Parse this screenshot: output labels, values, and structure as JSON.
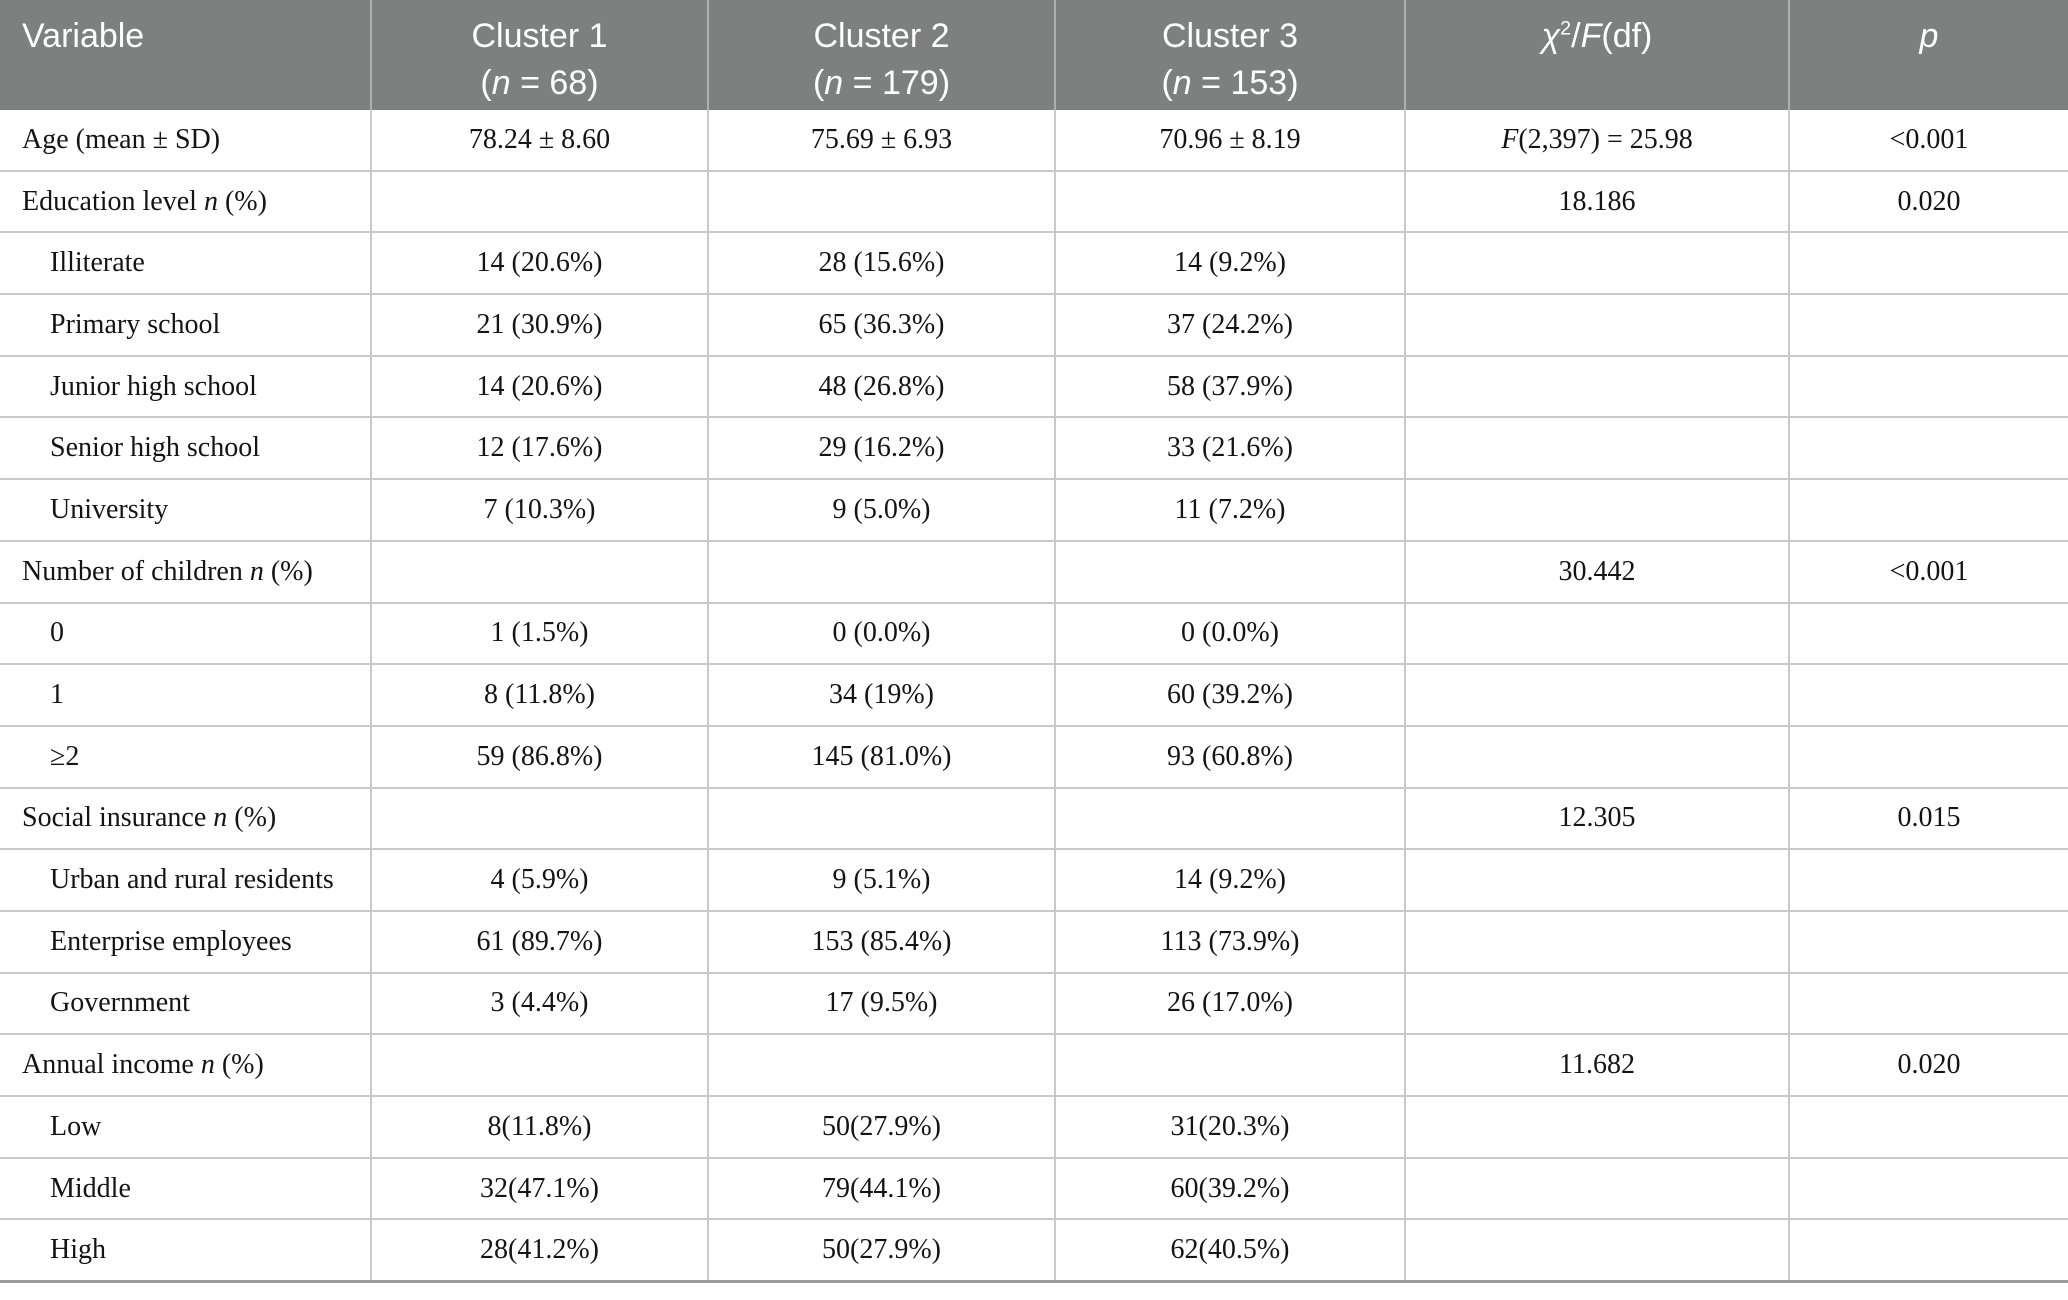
{
  "colors": {
    "header_bg": "#7e807f",
    "header_text": "#ffffff",
    "grid_border": "#c8c9c8",
    "header_separator": "#aeafae",
    "bottom_border": "#9c9d9c",
    "body_text": "#141414"
  },
  "table": {
    "header": {
      "variable": "Variable",
      "clusters": [
        {
          "line1": "Cluster 1",
          "line2": [
            [
              "(",
              "r"
            ],
            [
              "n",
              "i"
            ],
            [
              " = 68)",
              "r"
            ]
          ]
        },
        {
          "line1": "Cluster 2",
          "line2": [
            [
              "(",
              "r"
            ],
            [
              "n",
              "i"
            ],
            [
              " = 179)",
              "r"
            ]
          ]
        },
        {
          "line1": "Cluster 3",
          "line2": [
            [
              "(",
              "r"
            ],
            [
              "n",
              "i"
            ],
            [
              " = 153)",
              "r"
            ]
          ]
        }
      ],
      "stat": [
        [
          "χ",
          "i"
        ],
        [
          "2",
          "sup"
        ],
        [
          "/",
          "r"
        ],
        [
          "F",
          "i"
        ],
        [
          "(df)",
          "r"
        ]
      ],
      "p": "p"
    },
    "rows": [
      {
        "indent": 0,
        "label": [
          [
            "Age (mean ± SD)",
            "r"
          ]
        ],
        "c1": "78.24 ± 8.60",
        "c2": "75.69 ± 6.93",
        "c3": "70.96 ± 8.19",
        "stat": [
          [
            "F",
            "i"
          ],
          [
            "(2,397) = 25.98",
            "r"
          ]
        ],
        "p": "<0.001"
      },
      {
        "indent": 0,
        "label": [
          [
            "Education level ",
            "r"
          ],
          [
            "n",
            "i"
          ],
          [
            " (%)",
            "r"
          ]
        ],
        "c1": "",
        "c2": "",
        "c3": "",
        "stat": [
          [
            "18.186",
            "r"
          ]
        ],
        "p": "0.020"
      },
      {
        "indent": 1,
        "label": [
          [
            "Illiterate",
            "r"
          ]
        ],
        "c1": "14 (20.6%)",
        "c2": "28 (15.6%)",
        "c3": "14 (9.2%)",
        "stat": [],
        "p": ""
      },
      {
        "indent": 1,
        "label": [
          [
            "Primary school",
            "r"
          ]
        ],
        "c1": "21 (30.9%)",
        "c2": "65 (36.3%)",
        "c3": "37 (24.2%)",
        "stat": [],
        "p": ""
      },
      {
        "indent": 1,
        "label": [
          [
            "Junior high school",
            "r"
          ]
        ],
        "c1": "14 (20.6%)",
        "c2": "48 (26.8%)",
        "c3": "58 (37.9%)",
        "stat": [],
        "p": ""
      },
      {
        "indent": 1,
        "label": [
          [
            "Senior high school",
            "r"
          ]
        ],
        "c1": "12 (17.6%)",
        "c2": "29 (16.2%)",
        "c3": "33 (21.6%)",
        "stat": [],
        "p": ""
      },
      {
        "indent": 1,
        "label": [
          [
            "University",
            "r"
          ]
        ],
        "c1": "7 (10.3%)",
        "c2": "9 (5.0%)",
        "c3": "11 (7.2%)",
        "stat": [],
        "p": ""
      },
      {
        "indent": 0,
        "label": [
          [
            "Number of children ",
            "r"
          ],
          [
            "n",
            "i"
          ],
          [
            " (%)",
            "r"
          ]
        ],
        "c1": "",
        "c2": "",
        "c3": "",
        "stat": [
          [
            "30.442",
            "r"
          ]
        ],
        "p": "<0.001"
      },
      {
        "indent": 1,
        "label": [
          [
            "0",
            "r"
          ]
        ],
        "c1": "1 (1.5%)",
        "c2": "0 (0.0%)",
        "c3": "0 (0.0%)",
        "stat": [],
        "p": ""
      },
      {
        "indent": 1,
        "label": [
          [
            "1",
            "r"
          ]
        ],
        "c1": "8 (11.8%)",
        "c2": "34 (19%)",
        "c3": "60 (39.2%)",
        "stat": [],
        "p": ""
      },
      {
        "indent": 1,
        "label": [
          [
            "≥2",
            "r"
          ]
        ],
        "c1": "59 (86.8%)",
        "c2": "145 (81.0%)",
        "c3": "93 (60.8%)",
        "stat": [],
        "p": ""
      },
      {
        "indent": 0,
        "label": [
          [
            "Social insurance ",
            "r"
          ],
          [
            "n",
            "i"
          ],
          [
            " (%)",
            "r"
          ]
        ],
        "c1": "",
        "c2": "",
        "c3": "",
        "stat": [
          [
            "12.305",
            "r"
          ]
        ],
        "p": "0.015"
      },
      {
        "indent": 1,
        "label": [
          [
            "Urban and rural residents",
            "r"
          ]
        ],
        "c1": "4 (5.9%)",
        "c2": "9 (5.1%)",
        "c3": "14 (9.2%)",
        "stat": [],
        "p": ""
      },
      {
        "indent": 1,
        "label": [
          [
            "Enterprise employees",
            "r"
          ]
        ],
        "c1": "61 (89.7%)",
        "c2": "153 (85.4%)",
        "c3": "113 (73.9%)",
        "stat": [],
        "p": ""
      },
      {
        "indent": 1,
        "label": [
          [
            "Government",
            "r"
          ]
        ],
        "c1": "3 (4.4%)",
        "c2": "17 (9.5%)",
        "c3": "26 (17.0%)",
        "stat": [],
        "p": ""
      },
      {
        "indent": 0,
        "label": [
          [
            "Annual income ",
            "r"
          ],
          [
            "n",
            "i"
          ],
          [
            " (%)",
            "r"
          ]
        ],
        "c1": "",
        "c2": "",
        "c3": "",
        "stat": [
          [
            "11.682",
            "r"
          ]
        ],
        "p": "0.020"
      },
      {
        "indent": 1,
        "label": [
          [
            "Low",
            "r"
          ]
        ],
        "c1": "8(11.8%)",
        "c2": "50(27.9%)",
        "c3": "31(20.3%)",
        "stat": [],
        "p": ""
      },
      {
        "indent": 1,
        "label": [
          [
            "Middle",
            "r"
          ]
        ],
        "c1": "32(47.1%)",
        "c2": "79(44.1%)",
        "c3": "60(39.2%)",
        "stat": [],
        "p": ""
      },
      {
        "indent": 1,
        "label": [
          [
            "High",
            "r"
          ]
        ],
        "c1": "28(41.2%)",
        "c2": "50(27.9%)",
        "c3": "62(40.5%)",
        "stat": [],
        "p": ""
      }
    ]
  }
}
